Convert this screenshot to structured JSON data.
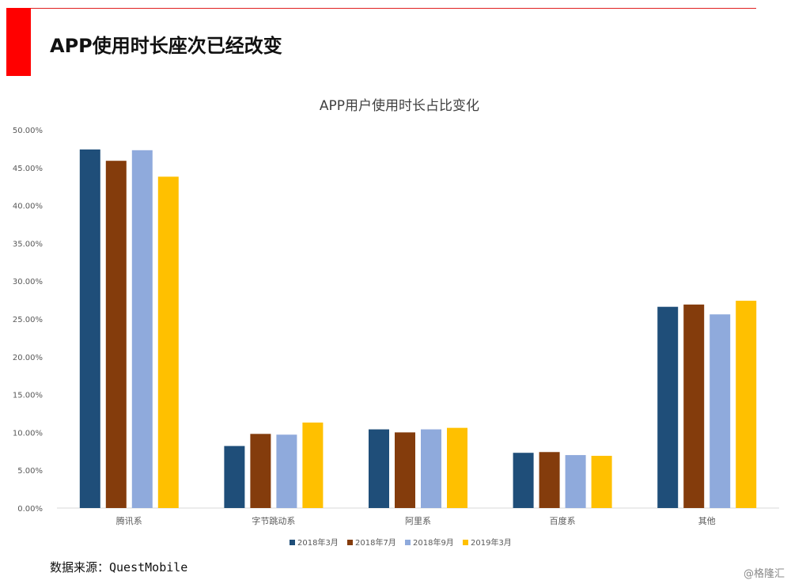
{
  "slide": {
    "title": "APP使用时长座次已经改变",
    "source": "数据来源：QuestMobile",
    "watermark": "@格隆汇"
  },
  "colors": {
    "accent_red": "#ff0000",
    "series": [
      "#1f4e79",
      "#843c0c",
      "#8faadc",
      "#ffc000"
    ]
  },
  "chart_data": {
    "type": "bar",
    "title": "APP用户使用时长占比变化",
    "xlabel": "",
    "ylabel": "",
    "categories": [
      "腾讯系",
      "字节跳动系",
      "阿里系",
      "百度系",
      "其他"
    ],
    "ylim": [
      0,
      50
    ],
    "yticks": [
      "0.00%",
      "5.00%",
      "10.00%",
      "15.00%",
      "20.00%",
      "25.00%",
      "30.00%",
      "35.00%",
      "40.00%",
      "45.00%",
      "50.00%"
    ],
    "grid": false,
    "legend_position": "bottom",
    "series": [
      {
        "name": "2018年3月",
        "values": [
          47.4,
          8.2,
          10.4,
          7.3,
          26.6
        ]
      },
      {
        "name": "2018年7月",
        "values": [
          45.9,
          9.8,
          10.0,
          7.4,
          26.9
        ]
      },
      {
        "name": "2018年9月",
        "values": [
          47.3,
          9.7,
          10.4,
          7.0,
          25.6
        ]
      },
      {
        "name": "2019年3月",
        "values": [
          43.8,
          11.3,
          10.6,
          6.9,
          27.4
        ]
      }
    ]
  }
}
